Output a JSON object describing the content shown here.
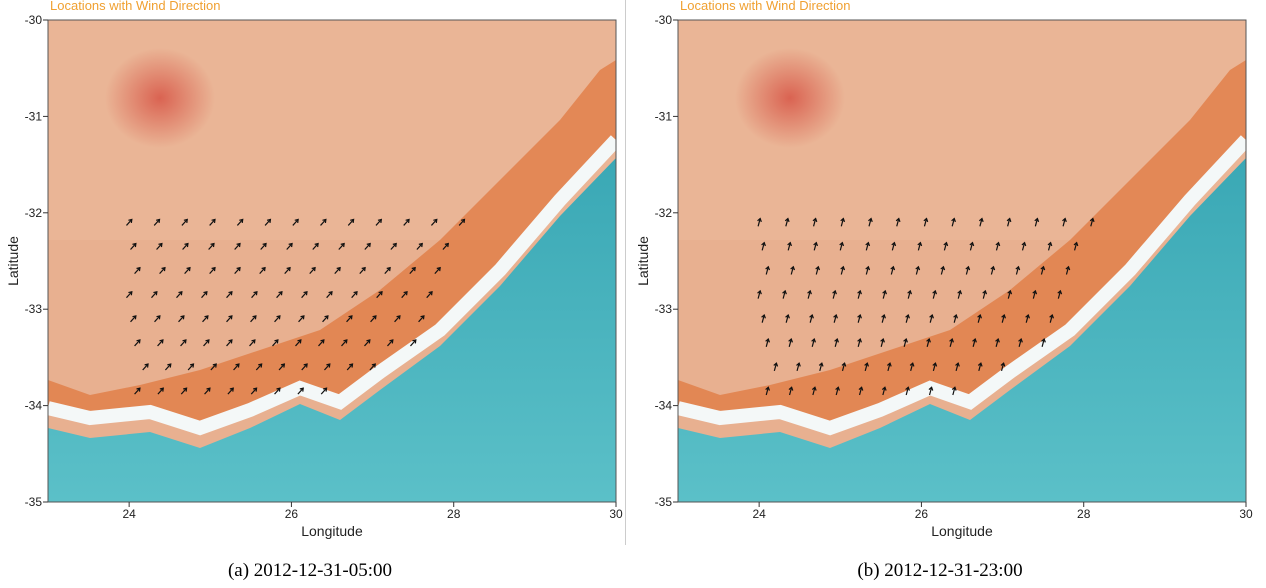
{
  "panels": [
    {
      "id": "a",
      "title": "Locations with Wind Direction",
      "caption": "(a) 2012-12-31-05:00",
      "xlabel": "Longitude",
      "ylabel": "Latitude",
      "xlim": [
        23,
        30
      ],
      "ylim": [
        -35,
        -30
      ],
      "xticks": [
        24,
        26,
        28,
        30
      ],
      "yticks": [
        -30,
        -31,
        -32,
        -33,
        -34,
        -35
      ],
      "wind_direction_deg": 42,
      "rows": [
        {
          "lat": -32.1,
          "lon_min": 24.0,
          "lon_max": 28.1,
          "n": 13
        },
        {
          "lat": -32.35,
          "lon_min": 24.05,
          "lon_max": 27.9,
          "n": 13
        },
        {
          "lat": -32.6,
          "lon_min": 24.1,
          "lon_max": 27.8,
          "n": 13
        },
        {
          "lat": -32.85,
          "lon_min": 24.0,
          "lon_max": 27.7,
          "n": 13
        },
        {
          "lat": -33.1,
          "lon_min": 24.05,
          "lon_max": 27.6,
          "n": 13
        },
        {
          "lat": -33.35,
          "lon_min": 24.1,
          "lon_max": 27.5,
          "n": 13
        },
        {
          "lat": -33.6,
          "lon_min": 24.2,
          "lon_max": 27.0,
          "n": 11
        },
        {
          "lat": -33.85,
          "lon_min": 24.1,
          "lon_max": 26.4,
          "n": 9
        }
      ]
    },
    {
      "id": "b",
      "title": "Locations with Wind Direction",
      "caption": "(b) 2012-12-31-23:00",
      "xlabel": "Longitude",
      "ylabel": "Latitude",
      "xlim": [
        23,
        30
      ],
      "ylim": [
        -35,
        -30
      ],
      "xticks": [
        24,
        26,
        28,
        30
      ],
      "yticks": [
        -30,
        -31,
        -32,
        -33,
        -34,
        -35
      ],
      "wind_direction_deg": 15,
      "rows": [
        {
          "lat": -32.1,
          "lon_min": 24.0,
          "lon_max": 28.1,
          "n": 13
        },
        {
          "lat": -32.35,
          "lon_min": 24.05,
          "lon_max": 27.9,
          "n": 13
        },
        {
          "lat": -32.6,
          "lon_min": 24.1,
          "lon_max": 27.8,
          "n": 13
        },
        {
          "lat": -32.85,
          "lon_min": 24.0,
          "lon_max": 27.7,
          "n": 13
        },
        {
          "lat": -33.1,
          "lon_min": 24.05,
          "lon_max": 27.6,
          "n": 13
        },
        {
          "lat": -33.35,
          "lon_min": 24.1,
          "lon_max": 27.5,
          "n": 13
        },
        {
          "lat": -33.6,
          "lon_min": 24.2,
          "lon_max": 27.0,
          "n": 11
        },
        {
          "lat": -33.85,
          "lon_min": 24.1,
          "lon_max": 26.4,
          "n": 9
        }
      ]
    }
  ],
  "colors": {
    "land": "#e8b090",
    "land_light": "#edc0a4",
    "coast_orange": "#e07a40",
    "sea": "#3aa8b5",
    "sea_light": "#5bc0c8",
    "surf": "#f4f8f8",
    "red_spot": "#d85a4a",
    "title": "#f0a030",
    "arrow": "#111111"
  }
}
